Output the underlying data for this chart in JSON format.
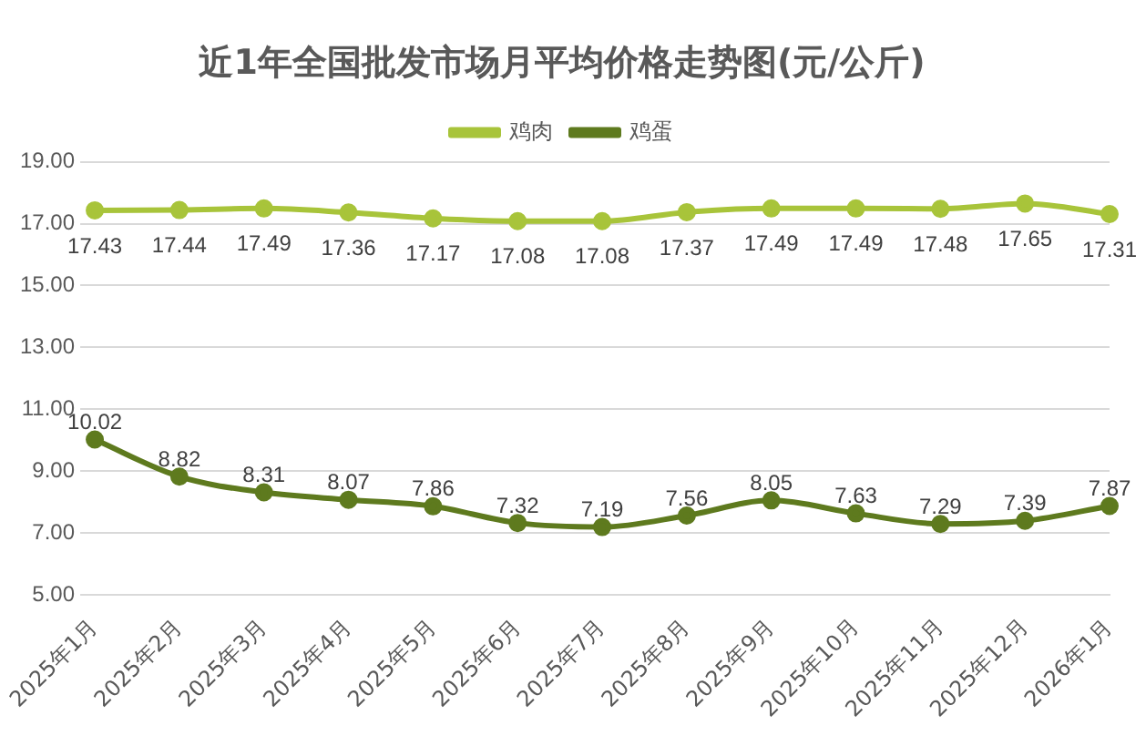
{
  "chart_data": {
    "type": "line",
    "title": "近1年全国批发市场月平均价格走势图(元/公斤)",
    "categories": [
      "2025年1月",
      "2025年2月",
      "2025年3月",
      "2025年4月",
      "2025年5月",
      "2025年6月",
      "2025年7月",
      "2025年8月",
      "2025年9月",
      "2025年10月",
      "2025年11月",
      "2025年12月",
      "2026年1月"
    ],
    "series": [
      {
        "name": "鸡肉",
        "color": "#a8c43a",
        "values": [
          17.43,
          17.44,
          17.49,
          17.36,
          17.17,
          17.08,
          17.08,
          17.37,
          17.49,
          17.49,
          17.48,
          17.65,
          17.31
        ]
      },
      {
        "name": "鸡蛋",
        "color": "#5e7a1e",
        "values": [
          10.02,
          8.82,
          8.31,
          8.07,
          7.86,
          7.32,
          7.19,
          7.56,
          8.05,
          7.63,
          7.29,
          7.39,
          7.87
        ]
      }
    ],
    "ylim": [
      5,
      19
    ],
    "yticks": [
      {
        "value": 5,
        "label": "5.00"
      },
      {
        "value": 7,
        "label": "7.00"
      },
      {
        "value": 9,
        "label": "9.00"
      },
      {
        "value": 11,
        "label": "11.00"
      },
      {
        "value": 13,
        "label": "13.00"
      },
      {
        "value": 15,
        "label": "15.00"
      },
      {
        "value": 17,
        "label": "17.00"
      },
      {
        "value": 19,
        "label": "19.00"
      }
    ],
    "grid": "y",
    "legend": "top",
    "marker": "circle",
    "line_style": "solid",
    "data_labels": true
  }
}
